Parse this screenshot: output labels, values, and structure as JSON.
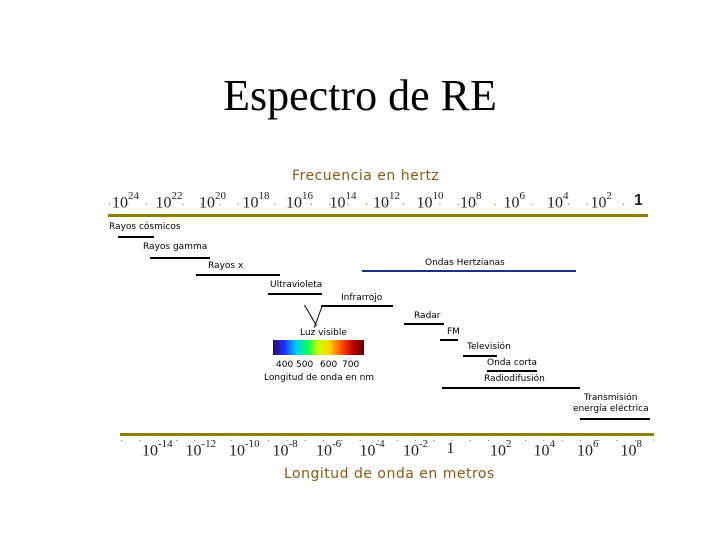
{
  "title": "Espectro de RE",
  "frequency": {
    "heading": "Frecuencia en hertz",
    "ticks": [
      {
        "base": "10",
        "exp": "24"
      },
      {
        "base": "10",
        "exp": "22"
      },
      {
        "base": "10",
        "exp": "20"
      },
      {
        "base": "10",
        "exp": "18"
      },
      {
        "base": "10",
        "exp": "16"
      },
      {
        "base": "10",
        "exp": "14"
      },
      {
        "base": "10",
        "exp": "12"
      },
      {
        "base": "10",
        "exp": "10"
      },
      {
        "base": "10",
        "exp": "8"
      },
      {
        "base": "10",
        "exp": "6"
      },
      {
        "base": "10",
        "exp": "4"
      },
      {
        "base": "10",
        "exp": "2"
      },
      {
        "base": "1",
        "exp": ""
      }
    ]
  },
  "bands": {
    "cosmic": "Rayos cósmicos",
    "gamma": "Rayos gamma",
    "xray": "Rayos x",
    "hertzian": "Ondas Hertzianas",
    "uv": "Ultravioleta",
    "ir": "Infrarrojo",
    "radar": "Radar",
    "fm": "FM",
    "tv": "Televisión",
    "shortwave": "Onda corta",
    "broadcast": "Radiodifusión",
    "power_1": "Transmisión",
    "power_2": "energía eléctrica"
  },
  "visible": {
    "label": "Luz visible",
    "ticks": [
      "400",
      "500",
      "600",
      "700"
    ],
    "unit_label": "Longitud de onda en nm"
  },
  "wavelength": {
    "heading": "Longitud de onda en metros",
    "ticks": [
      {
        "base": "10",
        "exp": "-14"
      },
      {
        "base": "10",
        "exp": "-12"
      },
      {
        "base": "10",
        "exp": "-10"
      },
      {
        "base": "10",
        "exp": "-8"
      },
      {
        "base": "10",
        "exp": "-6"
      },
      {
        "base": "10",
        "exp": "-4"
      },
      {
        "base": "10",
        "exp": "-2"
      },
      {
        "base": "1",
        "exp": ""
      },
      {
        "base": "10",
        "exp": "2"
      },
      {
        "base": "10",
        "exp": "4"
      },
      {
        "base": "10",
        "exp": "6"
      },
      {
        "base": "10",
        "exp": "8"
      }
    ]
  }
}
